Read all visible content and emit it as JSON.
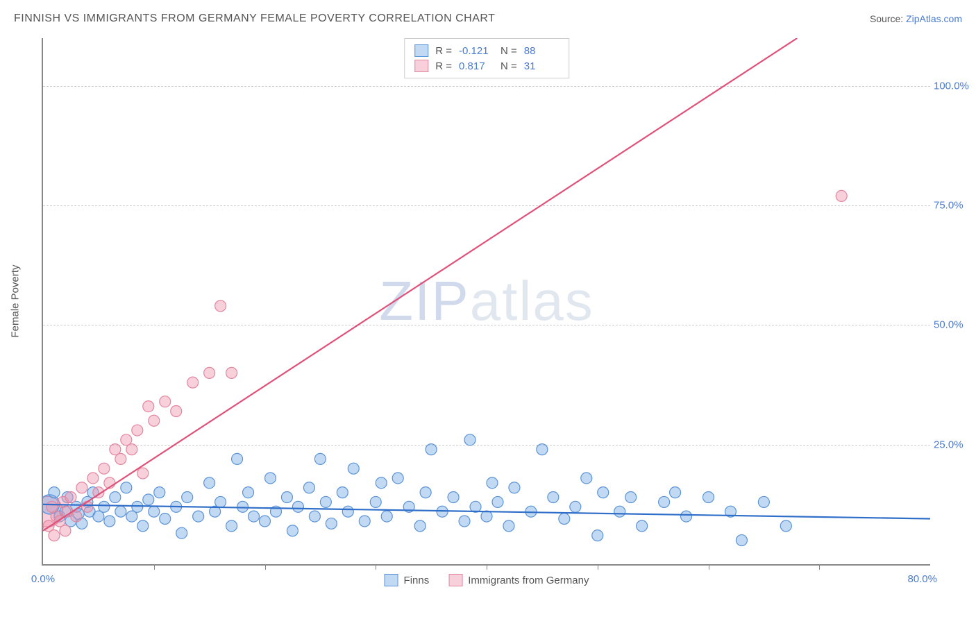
{
  "title": "FINNISH VS IMMIGRANTS FROM GERMANY FEMALE POVERTY CORRELATION CHART",
  "source_prefix": "Source: ",
  "source_link": "ZipAtlas.com",
  "ylabel": "Female Poverty",
  "watermark_z": "ZIP",
  "watermark_rest": "atlas",
  "chart": {
    "type": "scatter",
    "xlim": [
      0,
      80
    ],
    "ylim": [
      0,
      110
    ],
    "yticks": [
      25,
      50,
      75,
      100
    ],
    "ytick_labels": [
      "25.0%",
      "50.0%",
      "75.0%",
      "100.0%"
    ],
    "xtick_minor": [
      10,
      20,
      30,
      40,
      50,
      60,
      70
    ],
    "x_origin_label": "0.0%",
    "x_end_label": "80.0%",
    "grid_color": "#cccccc",
    "axis_color": "#888888",
    "background_color": "#ffffff",
    "marker_radius": 8,
    "marker_stroke_width": 1.2,
    "line_width": 2.2,
    "series": [
      {
        "id": "finns",
        "label": "Finns",
        "color_fill": "rgba(120,170,230,0.45)",
        "color_stroke": "#5a93d6",
        "line_color": "#2f6fc9",
        "R": "-0.121",
        "N": "88",
        "trend": {
          "x1": 0,
          "y1": 12.5,
          "x2": 80,
          "y2": 9.5
        },
        "points": [
          [
            1,
            15
          ],
          [
            1.5,
            10
          ],
          [
            2,
            11
          ],
          [
            2.2,
            14
          ],
          [
            2.5,
            9
          ],
          [
            3,
            12
          ],
          [
            3.2,
            10.5
          ],
          [
            3.5,
            8.5
          ],
          [
            4,
            13
          ],
          [
            4.2,
            11
          ],
          [
            4.5,
            15
          ],
          [
            5,
            10
          ],
          [
            5.5,
            12
          ],
          [
            6,
            9
          ],
          [
            6.5,
            14
          ],
          [
            7,
            11
          ],
          [
            7.5,
            16
          ],
          [
            8,
            10
          ],
          [
            8.5,
            12
          ],
          [
            9,
            8
          ],
          [
            9.5,
            13.5
          ],
          [
            10,
            11
          ],
          [
            10.5,
            15
          ],
          [
            11,
            9.5
          ],
          [
            12,
            12
          ],
          [
            12.5,
            6.5
          ],
          [
            13,
            14
          ],
          [
            14,
            10
          ],
          [
            15,
            17
          ],
          [
            15.5,
            11
          ],
          [
            16,
            13
          ],
          [
            17,
            8
          ],
          [
            17.5,
            22
          ],
          [
            18,
            12
          ],
          [
            18.5,
            15
          ],
          [
            19,
            10
          ],
          [
            20,
            9
          ],
          [
            20.5,
            18
          ],
          [
            21,
            11
          ],
          [
            22,
            14
          ],
          [
            22.5,
            7
          ],
          [
            23,
            12
          ],
          [
            24,
            16
          ],
          [
            24.5,
            10
          ],
          [
            25,
            22
          ],
          [
            25.5,
            13
          ],
          [
            26,
            8.5
          ],
          [
            27,
            15
          ],
          [
            27.5,
            11
          ],
          [
            28,
            20
          ],
          [
            29,
            9
          ],
          [
            30,
            13
          ],
          [
            30.5,
            17
          ],
          [
            31,
            10
          ],
          [
            32,
            18
          ],
          [
            33,
            12
          ],
          [
            34,
            8
          ],
          [
            34.5,
            15
          ],
          [
            35,
            24
          ],
          [
            36,
            11
          ],
          [
            37,
            14
          ],
          [
            38,
            9
          ],
          [
            38.5,
            26
          ],
          [
            39,
            12
          ],
          [
            40,
            10
          ],
          [
            40.5,
            17
          ],
          [
            41,
            13
          ],
          [
            42,
            8
          ],
          [
            42.5,
            16
          ],
          [
            44,
            11
          ],
          [
            45,
            24
          ],
          [
            46,
            14
          ],
          [
            47,
            9.5
          ],
          [
            48,
            12
          ],
          [
            49,
            18
          ],
          [
            50,
            6
          ],
          [
            50.5,
            15
          ],
          [
            52,
            11
          ],
          [
            53,
            14
          ],
          [
            54,
            8
          ],
          [
            56,
            13
          ],
          [
            57,
            15
          ],
          [
            58,
            10
          ],
          [
            60,
            14
          ],
          [
            62,
            11
          ],
          [
            63,
            5
          ],
          [
            65,
            13
          ],
          [
            67,
            8
          ]
        ]
      },
      {
        "id": "germany",
        "label": "Immigrants from Germany",
        "color_fill": "rgba(240,150,175,0.45)",
        "color_stroke": "#e2869f",
        "line_color": "#e0517a",
        "R": "0.817",
        "N": "31",
        "trend": {
          "x1": 0,
          "y1": 7,
          "x2": 68,
          "y2": 110
        },
        "points": [
          [
            0.5,
            8
          ],
          [
            0.8,
            12
          ],
          [
            1,
            6
          ],
          [
            1.2,
            10
          ],
          [
            1.5,
            9
          ],
          [
            1.8,
            13
          ],
          [
            2,
            7
          ],
          [
            2.2,
            11
          ],
          [
            2.5,
            14
          ],
          [
            3,
            10
          ],
          [
            3.5,
            16
          ],
          [
            4,
            12
          ],
          [
            4.5,
            18
          ],
          [
            5,
            15
          ],
          [
            5.5,
            20
          ],
          [
            6,
            17
          ],
          [
            6.5,
            24
          ],
          [
            7,
            22
          ],
          [
            7.5,
            26
          ],
          [
            8,
            24
          ],
          [
            8.5,
            28
          ],
          [
            9,
            19
          ],
          [
            9.5,
            33
          ],
          [
            10,
            30
          ],
          [
            11,
            34
          ],
          [
            12,
            32
          ],
          [
            13.5,
            38
          ],
          [
            15,
            40
          ],
          [
            16,
            54
          ],
          [
            17,
            40
          ],
          [
            72,
            77
          ]
        ]
      }
    ],
    "origin_big_markers": [
      {
        "series": "germany",
        "x": 0.4,
        "y": 11,
        "r": 22
      },
      {
        "series": "finns",
        "x": 0.6,
        "y": 12.5,
        "r": 14
      }
    ]
  },
  "legend_top": {
    "r_label": "R =",
    "n_label": "N ="
  }
}
